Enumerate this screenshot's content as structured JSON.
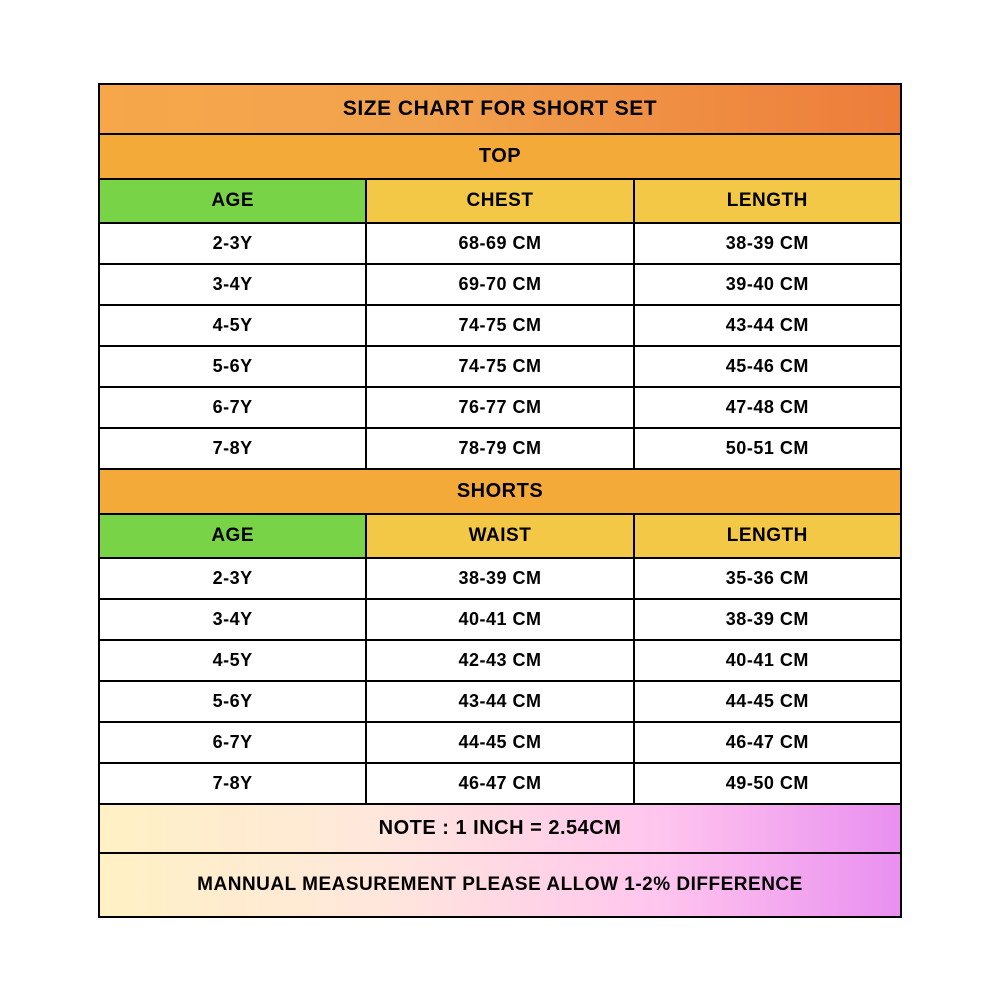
{
  "title": "SIZE CHART FOR  SHORT SET",
  "top": {
    "section_label": "TOP",
    "headers": {
      "age": "AGE",
      "col2": "CHEST",
      "col3": "LENGTH"
    },
    "rows": [
      {
        "age": "2-3Y",
        "col2": "68-69 CM",
        "col3": "38-39 CM"
      },
      {
        "age": "3-4Y",
        "col2": "69-70 CM",
        "col3": "39-40 CM"
      },
      {
        "age": "4-5Y",
        "col2": "74-75 CM",
        "col3": "43-44 CM"
      },
      {
        "age": "5-6Y",
        "col2": "74-75 CM",
        "col3": "45-46 CM"
      },
      {
        "age": "6-7Y",
        "col2": "76-77 CM",
        "col3": "47-48 CM"
      },
      {
        "age": "7-8Y",
        "col2": "78-79 CM",
        "col3": "50-51 CM"
      }
    ]
  },
  "shorts": {
    "section_label": "SHORTS",
    "headers": {
      "age": "AGE",
      "col2": "WAIST",
      "col3": "LENGTH"
    },
    "rows": [
      {
        "age": "2-3Y",
        "col2": "38-39 CM",
        "col3": "35-36 CM"
      },
      {
        "age": "3-4Y",
        "col2": "40-41 CM",
        "col3": "38-39 CM"
      },
      {
        "age": "4-5Y",
        "col2": "42-43 CM",
        "col3": "40-41 CM"
      },
      {
        "age": "5-6Y",
        "col2": "43-44 CM",
        "col3": "44-45 CM"
      },
      {
        "age": "6-7Y",
        "col2": "44-45 CM",
        "col3": "46-47 CM"
      },
      {
        "age": "7-8Y",
        "col2": "46-47 CM",
        "col3": "49-50 CM"
      }
    ]
  },
  "note": "NOTE : 1 INCH = 2.54CM",
  "manual_note": "MANNUAL MEASUREMENT PLEASE ALLOW 1-2% DIFFERENCE",
  "colors": {
    "border": "#000000",
    "title_grad_start": "#f7a74a",
    "title_grad_end": "#ed7d3a",
    "section_bg": "#f3aa38",
    "age_header_bg": "#79d347",
    "col_header_bg": "#f3c846",
    "data_bg": "#ffffff",
    "note_grad_start": "#fff1c4",
    "note_grad_mid1": "#ffe7dc",
    "note_grad_mid2": "#ffc5ee",
    "note_grad_end": "#e98ff0"
  }
}
